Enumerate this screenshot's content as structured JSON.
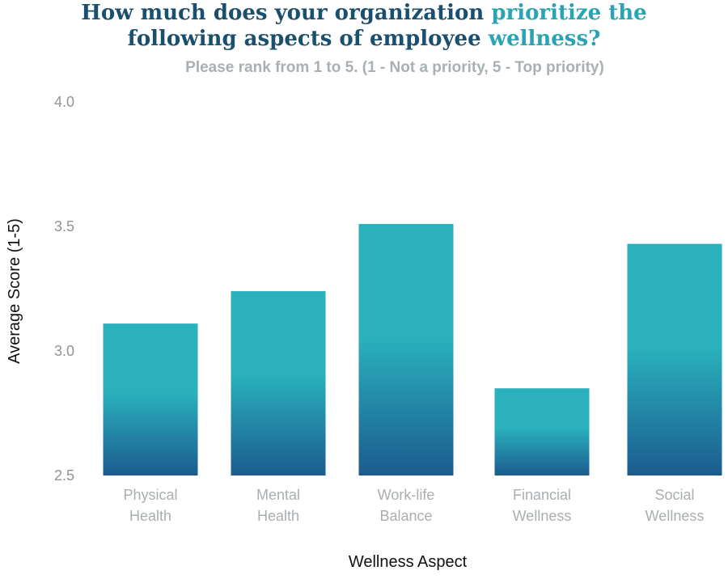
{
  "chart_data": {
    "type": "bar",
    "title_line1_a": "How much does your organization ",
    "title_line1_b": "prioritize the",
    "title_line2_a": "following aspects of employee ",
    "title_line2_b": "wellness?",
    "subtitle": "Please rank from 1 to 5. (1 - Not a priority, 5 - Top priority)",
    "xlabel": "Wellness Aspect",
    "ylabel": "Average Score (1-5)",
    "categories": [
      [
        "Physical",
        "Health"
      ],
      [
        "Mental",
        "Health"
      ],
      [
        "Work-life",
        "Balance"
      ],
      [
        "Financial",
        "Wellness"
      ],
      [
        "Social",
        "Wellness"
      ]
    ],
    "values": [
      3.11,
      3.24,
      3.51,
      2.85,
      3.43
    ],
    "ylim": [
      2.5,
      4.0
    ],
    "yticks": [
      "2.5",
      "3.0",
      "3.5",
      "4.0"
    ],
    "grid": false,
    "colors": {
      "bar_top": "#2ab1bd",
      "bar_bottom": "#1b5c8e",
      "title_dark": "#1a4f6e",
      "title_accent": "#2aa3b2"
    }
  }
}
